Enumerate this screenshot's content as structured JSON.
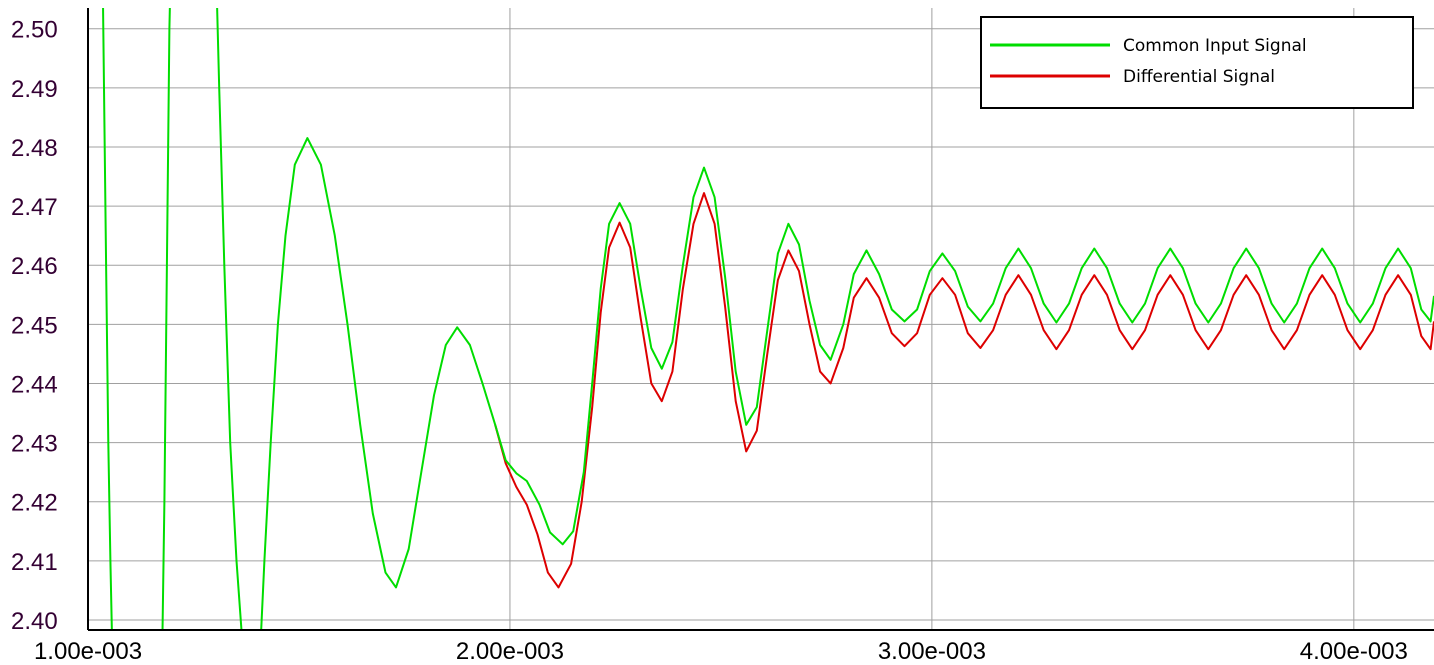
{
  "chart_data": {
    "type": "line",
    "title": "",
    "xlabel": "",
    "ylabel": "",
    "xlim": [
      0.001,
      0.00419
    ],
    "ylim": [
      2.3983,
      2.5035
    ],
    "grid": true,
    "legend_position": "top-right",
    "x_ticks": [
      {
        "value": 0.001,
        "label": "1.00e-003"
      },
      {
        "value": 0.002,
        "label": "2.00e-003"
      },
      {
        "value": 0.003,
        "label": "3.00e-003"
      },
      {
        "value": 0.004,
        "label": "4.00e-003"
      }
    ],
    "y_ticks": [
      {
        "value": 2.4,
        "label": "2.40"
      },
      {
        "value": 2.41,
        "label": "2.41"
      },
      {
        "value": 2.42,
        "label": "2.42"
      },
      {
        "value": 2.43,
        "label": "2.43"
      },
      {
        "value": 2.44,
        "label": "2.44"
      },
      {
        "value": 2.45,
        "label": "2.45"
      },
      {
        "value": 2.46,
        "label": "2.46"
      },
      {
        "value": 2.47,
        "label": "2.47"
      },
      {
        "value": 2.48,
        "label": "2.48"
      },
      {
        "value": 2.49,
        "label": "2.49"
      },
      {
        "value": 2.5,
        "label": "2.50"
      }
    ],
    "series": [
      {
        "name": "Common Input Signal",
        "color": "#00dd00",
        "points": [
          [
            0.001033,
            2.52
          ],
          [
            0.001038,
            2.49
          ],
          [
            0.001043,
            2.46
          ],
          [
            0.001048,
            2.43
          ],
          [
            0.001053,
            2.41
          ],
          [
            0.001059,
            2.39
          ],
          [
            0.001175,
            2.39
          ],
          [
            0.001181,
            2.42
          ],
          [
            0.001187,
            2.46
          ],
          [
            0.001193,
            2.5
          ],
          [
            0.001199,
            2.52
          ],
          [
            0.0013,
            2.52
          ],
          [
            0.001311,
            2.49
          ],
          [
            0.001323,
            2.46
          ],
          [
            0.001337,
            2.43
          ],
          [
            0.001352,
            2.41
          ],
          [
            0.001372,
            2.39
          ],
          [
            0.001405,
            2.39
          ],
          [
            0.001418,
            2.41
          ],
          [
            0.001433,
            2.43
          ],
          [
            0.00145,
            2.45
          ],
          [
            0.001468,
            2.465
          ],
          [
            0.00149,
            2.477
          ],
          [
            0.00152,
            2.4815
          ],
          [
            0.001552,
            2.477
          ],
          [
            0.001585,
            2.465
          ],
          [
            0.001615,
            2.45
          ],
          [
            0.001645,
            2.433
          ],
          [
            0.001675,
            2.418
          ],
          [
            0.001705,
            2.408
          ],
          [
            0.00173,
            2.4055
          ],
          [
            0.00176,
            2.412
          ],
          [
            0.00179,
            2.425
          ],
          [
            0.00182,
            2.438
          ],
          [
            0.001848,
            2.4465
          ],
          [
            0.001875,
            2.4495
          ],
          [
            0.001905,
            2.4465
          ],
          [
            0.001935,
            2.44
          ],
          [
            0.001965,
            2.433
          ],
          [
            0.00199,
            2.427
          ],
          [
            0.002015,
            2.4248
          ],
          [
            0.00204,
            2.4235
          ],
          [
            0.00207,
            2.4195
          ],
          [
            0.002095,
            2.4148
          ],
          [
            0.002125,
            2.4128
          ],
          [
            0.00215,
            2.415
          ],
          [
            0.002175,
            2.425
          ],
          [
            0.002195,
            2.44
          ],
          [
            0.002215,
            2.456
          ],
          [
            0.002235,
            2.467
          ],
          [
            0.00226,
            2.4705
          ],
          [
            0.002285,
            2.467
          ],
          [
            0.00231,
            2.456
          ],
          [
            0.002335,
            2.446
          ],
          [
            0.00236,
            2.4425
          ],
          [
            0.002385,
            2.447
          ],
          [
            0.00241,
            2.46
          ],
          [
            0.002435,
            2.4715
          ],
          [
            0.00246,
            2.4765
          ],
          [
            0.002485,
            2.4715
          ],
          [
            0.00251,
            2.458
          ],
          [
            0.002535,
            2.442
          ],
          [
            0.00256,
            2.433
          ],
          [
            0.002585,
            2.436
          ],
          [
            0.00261,
            2.449
          ],
          [
            0.002635,
            2.462
          ],
          [
            0.00266,
            2.467
          ],
          [
            0.002685,
            2.4635
          ],
          [
            0.00271,
            2.454
          ],
          [
            0.002735,
            2.4465
          ],
          [
            0.00276,
            2.444
          ],
          [
            0.00279,
            2.45
          ],
          [
            0.002815,
            2.4585
          ],
          [
            0.002845,
            2.4625
          ],
          [
            0.002875,
            2.4585
          ],
          [
            0.002905,
            2.4525
          ],
          [
            0.002935,
            2.4505
          ],
          [
            0.002965,
            2.4525
          ],
          [
            0.002995,
            2.459
          ],
          [
            0.003025,
            2.462
          ],
          [
            0.003055,
            2.459
          ],
          [
            0.003085,
            2.453
          ],
          [
            0.003115,
            2.4505
          ],
          [
            0.003145,
            2.4535
          ],
          [
            0.003175,
            2.4595
          ],
          [
            0.003205,
            2.4628
          ],
          [
            0.003235,
            2.4595
          ],
          [
            0.003265,
            2.4535
          ],
          [
            0.003295,
            2.4503
          ],
          [
            0.003325,
            2.4535
          ],
          [
            0.003355,
            2.4595
          ],
          [
            0.003385,
            2.4628
          ],
          [
            0.003415,
            2.4595
          ],
          [
            0.003445,
            2.4535
          ],
          [
            0.003475,
            2.4503
          ],
          [
            0.003505,
            2.4535
          ],
          [
            0.003535,
            2.4595
          ],
          [
            0.003565,
            2.4628
          ],
          [
            0.003595,
            2.4595
          ],
          [
            0.003625,
            2.4535
          ],
          [
            0.003655,
            2.4503
          ],
          [
            0.003685,
            2.4535
          ],
          [
            0.003715,
            2.4595
          ],
          [
            0.003745,
            2.4628
          ],
          [
            0.003775,
            2.4595
          ],
          [
            0.003805,
            2.4535
          ],
          [
            0.003835,
            2.4503
          ],
          [
            0.003865,
            2.4535
          ],
          [
            0.003895,
            2.4595
          ],
          [
            0.003925,
            2.4628
          ],
          [
            0.003955,
            2.4595
          ],
          [
            0.003985,
            2.4535
          ],
          [
            0.004015,
            2.4503
          ],
          [
            0.004045,
            2.4535
          ],
          [
            0.004075,
            2.4595
          ],
          [
            0.004105,
            2.4628
          ],
          [
            0.004135,
            2.4595
          ],
          [
            0.00416,
            2.4525
          ],
          [
            0.004182,
            2.4505
          ],
          [
            0.00419,
            2.4548
          ]
        ]
      },
      {
        "name": "Differential Signal",
        "color": "#dd0000",
        "points": [
          [
            0.001965,
            2.433
          ],
          [
            0.00199,
            2.4265
          ],
          [
            0.002015,
            2.4225
          ],
          [
            0.00204,
            2.4195
          ],
          [
            0.002065,
            2.4145
          ],
          [
            0.00209,
            2.408
          ],
          [
            0.002115,
            2.4055
          ],
          [
            0.002145,
            2.4095
          ],
          [
            0.00217,
            2.42
          ],
          [
            0.002195,
            2.436
          ],
          [
            0.002215,
            2.452
          ],
          [
            0.002235,
            2.463
          ],
          [
            0.00226,
            2.4672
          ],
          [
            0.002285,
            2.463
          ],
          [
            0.00231,
            2.451
          ],
          [
            0.002335,
            2.44
          ],
          [
            0.00236,
            2.437
          ],
          [
            0.002385,
            2.442
          ],
          [
            0.00241,
            2.456
          ],
          [
            0.002435,
            2.467
          ],
          [
            0.00246,
            2.4722
          ],
          [
            0.002485,
            2.467
          ],
          [
            0.00251,
            2.453
          ],
          [
            0.002535,
            2.437
          ],
          [
            0.00256,
            2.4285
          ],
          [
            0.002585,
            2.432
          ],
          [
            0.00261,
            2.445
          ],
          [
            0.002635,
            2.4575
          ],
          [
            0.00266,
            2.4625
          ],
          [
            0.002685,
            2.459
          ],
          [
            0.00271,
            2.45
          ],
          [
            0.002735,
            2.442
          ],
          [
            0.00276,
            2.44
          ],
          [
            0.00279,
            2.446
          ],
          [
            0.002815,
            2.4545
          ],
          [
            0.002845,
            2.4578
          ],
          [
            0.002875,
            2.4545
          ],
          [
            0.002905,
            2.4485
          ],
          [
            0.002935,
            2.4463
          ],
          [
            0.002965,
            2.4485
          ],
          [
            0.002995,
            2.455
          ],
          [
            0.003025,
            2.4578
          ],
          [
            0.003055,
            2.455
          ],
          [
            0.003085,
            2.4485
          ],
          [
            0.003115,
            2.446
          ],
          [
            0.003145,
            2.449
          ],
          [
            0.003175,
            2.455
          ],
          [
            0.003205,
            2.4583
          ],
          [
            0.003235,
            2.455
          ],
          [
            0.003265,
            2.449
          ],
          [
            0.003295,
            2.4458
          ],
          [
            0.003325,
            2.449
          ],
          [
            0.003355,
            2.455
          ],
          [
            0.003385,
            2.4583
          ],
          [
            0.003415,
            2.455
          ],
          [
            0.003445,
            2.449
          ],
          [
            0.003475,
            2.4458
          ],
          [
            0.003505,
            2.449
          ],
          [
            0.003535,
            2.455
          ],
          [
            0.003565,
            2.4583
          ],
          [
            0.003595,
            2.455
          ],
          [
            0.003625,
            2.449
          ],
          [
            0.003655,
            2.4458
          ],
          [
            0.003685,
            2.449
          ],
          [
            0.003715,
            2.455
          ],
          [
            0.003745,
            2.4583
          ],
          [
            0.003775,
            2.455
          ],
          [
            0.003805,
            2.449
          ],
          [
            0.003835,
            2.4458
          ],
          [
            0.003865,
            2.449
          ],
          [
            0.003895,
            2.455
          ],
          [
            0.003925,
            2.4583
          ],
          [
            0.003955,
            2.455
          ],
          [
            0.003985,
            2.449
          ],
          [
            0.004015,
            2.4458
          ],
          [
            0.004045,
            2.449
          ],
          [
            0.004075,
            2.455
          ],
          [
            0.004105,
            2.4583
          ],
          [
            0.004135,
            2.455
          ],
          [
            0.00416,
            2.448
          ],
          [
            0.004182,
            2.4458
          ],
          [
            0.00419,
            2.4505
          ]
        ]
      }
    ]
  }
}
